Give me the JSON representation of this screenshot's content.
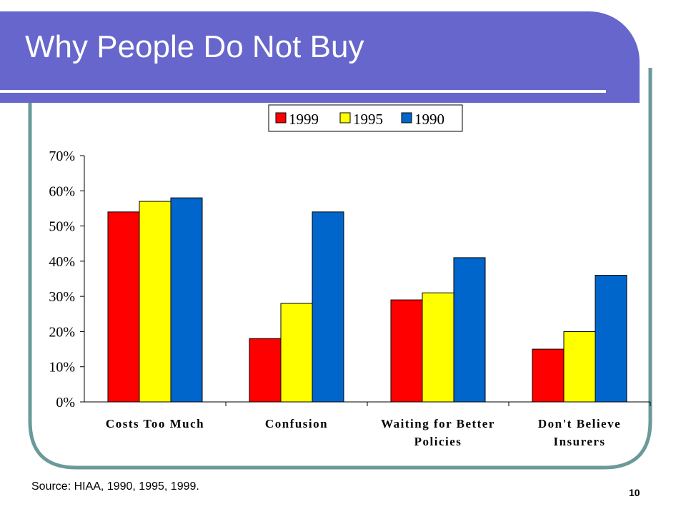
{
  "slide": {
    "title": "Why People Do Not Buy",
    "source": "Source: HIAA, 1990, 1995, 1999.",
    "page_number": "10",
    "title_band_color": "#6666cc",
    "frame_color": "#6a9a99"
  },
  "chart_data": {
    "type": "bar",
    "categories": [
      [
        "Costs Too Much"
      ],
      [
        "Confusion"
      ],
      [
        "Waiting for Better",
        "Policies"
      ],
      [
        "Don't Believe",
        "Insurers"
      ]
    ],
    "series": [
      {
        "name": "1999",
        "color": "#ff0000",
        "values": [
          54,
          18,
          29,
          15
        ]
      },
      {
        "name": "1995",
        "color": "#ffff00",
        "values": [
          57,
          28,
          31,
          20
        ]
      },
      {
        "name": "1990",
        "color": "#0066cc",
        "values": [
          58,
          54,
          41,
          36
        ]
      }
    ],
    "y_ticks": [
      "0%",
      "10%",
      "20%",
      "30%",
      "40%",
      "50%",
      "60%",
      "70%"
    ],
    "ylim": [
      0,
      70
    ],
    "legend_position": "top",
    "grid": false
  }
}
